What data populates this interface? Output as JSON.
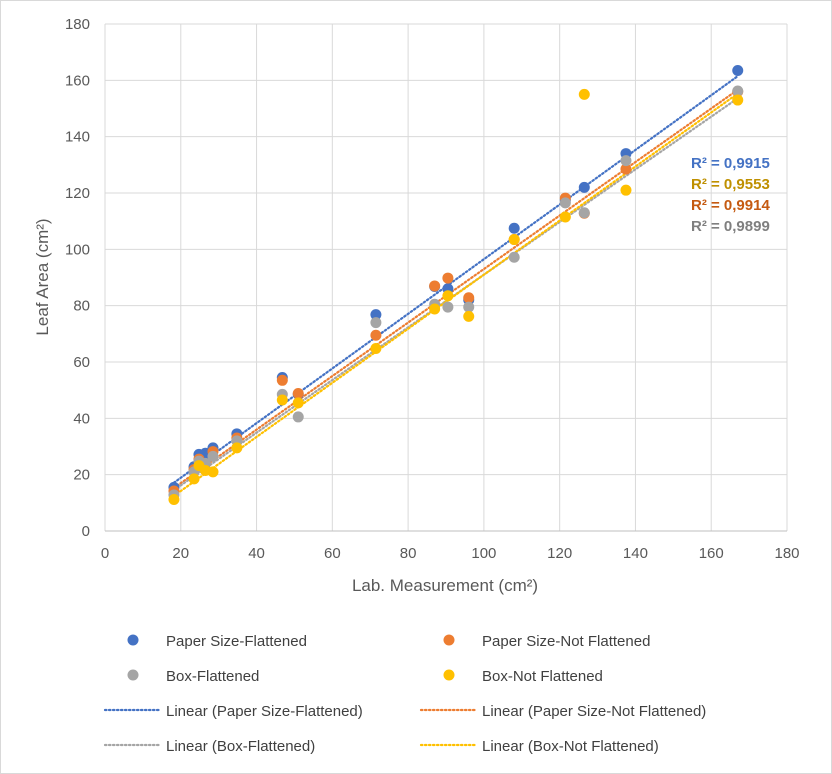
{
  "chart_data": {
    "type": "scatter",
    "xlabel": "Lab. Measurement (cm²)",
    "ylabel": "Leaf Area (cm²)",
    "xlim": [
      0,
      180
    ],
    "ylim": [
      0,
      180
    ],
    "xticks": [
      "0",
      "20",
      "40",
      "60",
      "80",
      "100",
      "120",
      "140",
      "160",
      "180"
    ],
    "yticks": [
      "0",
      "20",
      "40",
      "60",
      "80",
      "100",
      "120",
      "140",
      "160",
      "180"
    ],
    "grid": true,
    "legend_position": "bottom",
    "series": [
      {
        "name": "Paper Size-Flattened",
        "color": "#4472C4",
        "points": [
          [
            18.2,
            15.5
          ],
          [
            23.5,
            22.8
          ],
          [
            24.8,
            27.2
          ],
          [
            26.5,
            27.6
          ],
          [
            28.5,
            29.5
          ],
          [
            34.8,
            34.5
          ],
          [
            46.8,
            54.5
          ],
          [
            51,
            48.5
          ],
          [
            71.5,
            76.8
          ],
          [
            87,
            86.8
          ],
          [
            90.5,
            86
          ],
          [
            96,
            82
          ],
          [
            108,
            107.5
          ],
          [
            121.5,
            117.5
          ],
          [
            126.5,
            122
          ],
          [
            137.5,
            134
          ],
          [
            167,
            163.5
          ]
        ]
      },
      {
        "name": "Paper Size-Not Flattened",
        "color": "#ED7D31",
        "points": [
          [
            18.2,
            14.2
          ],
          [
            23.5,
            21.8
          ],
          [
            24.8,
            25.5
          ],
          [
            26.5,
            23.8
          ],
          [
            28.5,
            28.2
          ],
          [
            34.8,
            33
          ],
          [
            46.8,
            53.5
          ],
          [
            51,
            48.8
          ],
          [
            71.5,
            69.5
          ],
          [
            87,
            87
          ],
          [
            90.5,
            89.8
          ],
          [
            96,
            82.8
          ],
          [
            108,
            103.5
          ],
          [
            121.5,
            118.2
          ],
          [
            126.5,
            112.8
          ],
          [
            137.5,
            128.5
          ],
          [
            167,
            156
          ]
        ]
      },
      {
        "name": "Box-Flattened",
        "color": "#A5A5A5",
        "points": [
          [
            18.2,
            12.8
          ],
          [
            23.5,
            21
          ],
          [
            24.8,
            24.8
          ],
          [
            26.5,
            24
          ],
          [
            28.5,
            26.5
          ],
          [
            34.8,
            32
          ],
          [
            46.8,
            48.5
          ],
          [
            51,
            40.5
          ],
          [
            71.5,
            74
          ],
          [
            87,
            80.5
          ],
          [
            90.5,
            79.5
          ],
          [
            96,
            79.5
          ],
          [
            108,
            97.2
          ],
          [
            121.5,
            116.5
          ],
          [
            126.5,
            113
          ],
          [
            137.5,
            131.5
          ],
          [
            167,
            156.2
          ]
        ]
      },
      {
        "name": "Box-Not Flattened",
        "color": "#FFC000",
        "points": [
          [
            18.2,
            11.2
          ],
          [
            23.5,
            18.5
          ],
          [
            24.8,
            23.2
          ],
          [
            26.5,
            21.5
          ],
          [
            28.5,
            21
          ],
          [
            34.8,
            29.5
          ],
          [
            46.8,
            46.5
          ],
          [
            51,
            45.5
          ],
          [
            71.5,
            64.8
          ],
          [
            87,
            78.8
          ],
          [
            90.5,
            83.5
          ],
          [
            96,
            76.2
          ],
          [
            108,
            103.5
          ],
          [
            121.5,
            111.5
          ],
          [
            126.5,
            155
          ],
          [
            137.5,
            121
          ],
          [
            167,
            153
          ]
        ]
      }
    ],
    "trendlines": [
      {
        "name": "Linear (Paper Size-Flattened)",
        "color": "#4472C4",
        "slope": 0.97,
        "intercept": -0.5,
        "x_range": [
          18.2,
          167
        ]
      },
      {
        "name": "Linear (Paper Size-Not Flattened)",
        "color": "#ED7D31",
        "slope": 0.95,
        "intercept": -2.0,
        "x_range": [
          18.2,
          167
        ]
      },
      {
        "name": "Linear (Box-Flattened)",
        "color": "#A5A5A5",
        "slope": 0.935,
        "intercept": -2.5,
        "x_range": [
          18.2,
          167
        ]
      },
      {
        "name": "Linear (Box-Not Flattened)",
        "color": "#FFC000",
        "slope": 0.96,
        "intercept": -5.0,
        "x_range": [
          18.2,
          167
        ]
      }
    ],
    "annotations": [
      {
        "text": "R² = 0,9915",
        "color": "#4472C4"
      },
      {
        "text": "R² = 0,9553",
        "color": "#BF9000"
      },
      {
        "text": "R² = 0,9914",
        "color": "#C55A11"
      },
      {
        "text": "R² = 0,9899",
        "color": "#7F7F7F"
      }
    ]
  }
}
